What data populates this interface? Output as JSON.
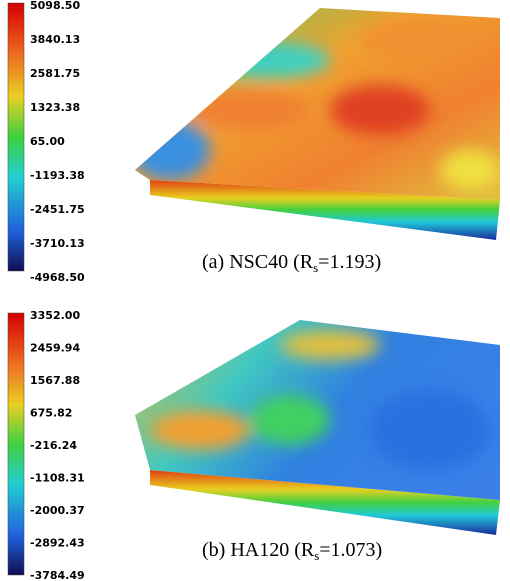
{
  "panels": [
    {
      "colorbar_ticks": [
        "5098.50",
        "3840.13",
        "2581.75",
        "1323.38",
        "65.00",
        "-1193.38",
        "-2451.75",
        "-3710.13",
        "-4968.50"
      ],
      "caption": {
        "prefix": "(a) NSC40 (R",
        "sub": "s",
        "suffix": "=1.193)"
      }
    },
    {
      "colorbar_ticks": [
        "3352.00",
        "2459.94",
        "1567.88",
        "675.82",
        "-216.24",
        "-1108.31",
        "-2000.37",
        "-2892.43",
        "-3784.49"
      ],
      "caption": {
        "prefix": "(b) HA120 (R",
        "sub": "s",
        "suffix": "=1.073)"
      }
    }
  ]
}
